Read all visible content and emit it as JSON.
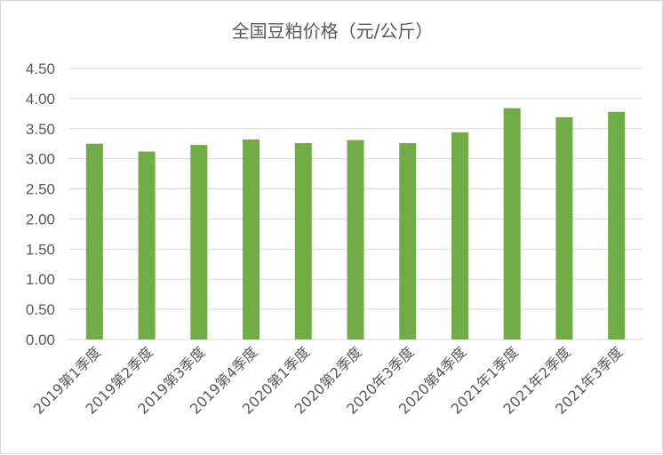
{
  "chart_data": {
    "type": "bar",
    "title": "全国豆粕价格（元/公斤）",
    "xlabel": "",
    "ylabel": "",
    "categories": [
      "2019第1季度",
      "2019第2季度",
      "2019第3季度",
      "2019第4季度",
      "2020第1季度",
      "2020第2季度",
      "2020年3季度",
      "2020第4季度",
      "2021年1季度",
      "2021年2季度",
      "2021年3季度"
    ],
    "values": [
      3.25,
      3.12,
      3.23,
      3.32,
      3.26,
      3.31,
      3.26,
      3.44,
      3.84,
      3.69,
      3.78
    ],
    "ylim": [
      0,
      4.5
    ],
    "yticks": [
      "0.00",
      "0.50",
      "1.00",
      "1.50",
      "2.00",
      "2.50",
      "3.00",
      "3.50",
      "4.00",
      "4.50"
    ],
    "grid": true,
    "legend": "none",
    "bar_color": "#70ad47"
  }
}
